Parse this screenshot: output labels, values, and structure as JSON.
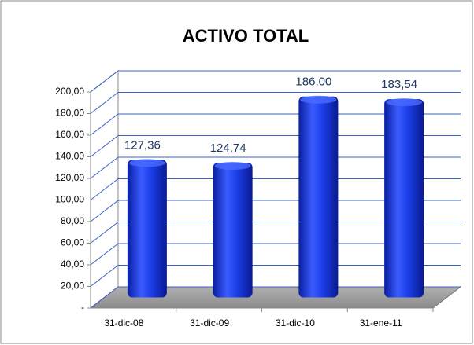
{
  "chart_data": {
    "type": "bar",
    "title": "ACTIVO TOTAL",
    "categories": [
      "31-dic-08",
      "31-dic-09",
      "31-dic-10",
      "31-ene-11"
    ],
    "values": [
      127.36,
      124.74,
      186.0,
      183.54
    ],
    "value_labels": [
      "127,36",
      "124,74",
      "186,00",
      "183,54"
    ],
    "color": "#1a3ee8",
    "ylim": [
      0,
      200
    ],
    "yticks": [
      {
        "value": 0,
        "label": "-"
      },
      {
        "value": 20,
        "label": "20,00"
      },
      {
        "value": 40,
        "label": "40,00"
      },
      {
        "value": 60,
        "label": "60,00"
      },
      {
        "value": 80,
        "label": "80,00"
      },
      {
        "value": 100,
        "label": "100,00"
      },
      {
        "value": 120,
        "label": "120,00"
      },
      {
        "value": 140,
        "label": "140,00"
      },
      {
        "value": 160,
        "label": "160,00"
      },
      {
        "value": 180,
        "label": "180,00"
      },
      {
        "value": 200,
        "label": "200,00"
      }
    ],
    "grid": true
  }
}
